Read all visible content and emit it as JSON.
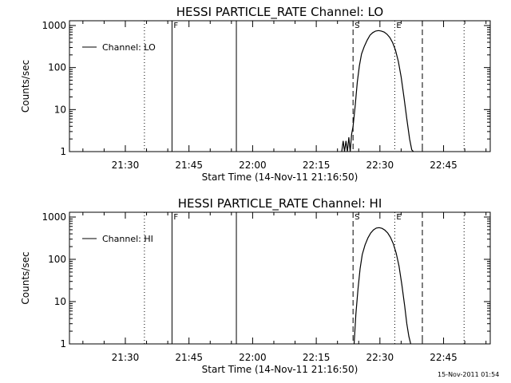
{
  "chart_data": [
    {
      "type": "line",
      "title": "HESSI PARTICLE_RATE Channel: LO",
      "xlabel": "Start Time (14-Nov-11 21:16:50)",
      "ylabel": "Counts/sec",
      "xlim": [
        "21:16:50",
        "22:56:00"
      ],
      "ylim": [
        1,
        1000
      ],
      "y_scale": "log",
      "x_ticks": [
        "21:30",
        "21:45",
        "22:00",
        "22:15",
        "22:30",
        "22:45"
      ],
      "y_ticks": [
        "1",
        "10",
        "100",
        "1000"
      ],
      "legend": {
        "position": "top-left",
        "entries": [
          "Channel: LO"
        ]
      },
      "markers": [
        {
          "time": "21:34:30",
          "style": "dotted",
          "label": ""
        },
        {
          "time": "21:41:00",
          "style": "solid",
          "label": "F"
        },
        {
          "time": "21:56:10",
          "style": "solid",
          "label": ""
        },
        {
          "time": "22:23:40",
          "style": "dashed",
          "label": "S"
        },
        {
          "time": "22:33:30",
          "style": "dotted",
          "label": "E"
        },
        {
          "time": "22:40:00",
          "style": "dashed",
          "label": ""
        },
        {
          "time": "22:49:50",
          "style": "dotted",
          "label": ""
        }
      ],
      "series": [
        {
          "name": "Channel: LO",
          "x": [
            "22:21:00",
            "22:21:20",
            "22:21:40",
            "22:22:00",
            "22:22:20",
            "22:22:40",
            "22:23:00",
            "22:23:20",
            "22:23:40",
            "22:24:10",
            "22:24:40",
            "22:25:10",
            "22:25:40",
            "22:26:20",
            "22:27:00",
            "22:27:40",
            "22:28:20",
            "22:29:00",
            "22:29:40",
            "22:30:20",
            "22:31:00",
            "22:31:40",
            "22:32:20",
            "22:33:00",
            "22:33:40",
            "22:34:20",
            "22:35:00",
            "22:35:40",
            "22:36:20",
            "22:37:00",
            "22:37:30",
            "22:37:55"
          ],
          "y": [
            1,
            1.8,
            1,
            1.8,
            1,
            2.2,
            1,
            2.6,
            4,
            12,
            45,
            110,
            210,
            320,
            450,
            590,
            680,
            740,
            760,
            740,
            700,
            620,
            520,
            390,
            260,
            140,
            60,
            20,
            6,
            2,
            1.1,
            1
          ]
        }
      ]
    },
    {
      "type": "line",
      "title": "HESSI PARTICLE_RATE Channel: HI",
      "xlabel": "Start Time (14-Nov-11 21:16:50)",
      "ylabel": "Counts/sec",
      "xlim": [
        "21:16:50",
        "22:56:00"
      ],
      "ylim": [
        1,
        1000
      ],
      "y_scale": "log",
      "x_ticks": [
        "21:30",
        "21:45",
        "22:00",
        "22:15",
        "22:30",
        "22:45"
      ],
      "y_ticks": [
        "1",
        "10",
        "100",
        "1000"
      ],
      "legend": {
        "position": "top-left",
        "entries": [
          "Channel: HI"
        ]
      },
      "markers": [
        {
          "time": "21:34:30",
          "style": "dotted",
          "label": ""
        },
        {
          "time": "21:41:00",
          "style": "solid",
          "label": "F"
        },
        {
          "time": "21:56:10",
          "style": "solid",
          "label": ""
        },
        {
          "time": "22:23:40",
          "style": "dashed",
          "label": "S"
        },
        {
          "time": "22:33:30",
          "style": "dotted",
          "label": "E"
        },
        {
          "time": "22:40:00",
          "style": "dashed",
          "label": ""
        },
        {
          "time": "22:49:50",
          "style": "dotted",
          "label": ""
        }
      ],
      "series": [
        {
          "name": "Channel: HI",
          "x": [
            "22:23:55",
            "22:24:20",
            "22:24:50",
            "22:25:20",
            "22:25:50",
            "22:26:30",
            "22:27:10",
            "22:27:50",
            "22:28:30",
            "22:29:10",
            "22:29:50",
            "22:30:30",
            "22:31:10",
            "22:31:50",
            "22:32:30",
            "22:33:10",
            "22:33:50",
            "22:34:30",
            "22:35:10",
            "22:35:50",
            "22:36:20",
            "22:36:50",
            "22:37:15"
          ],
          "y": [
            1,
            5,
            20,
            60,
            130,
            220,
            320,
            420,
            500,
            550,
            560,
            540,
            490,
            420,
            330,
            230,
            140,
            70,
            25,
            8,
            3,
            1.5,
            1
          ]
        }
      ]
    }
  ],
  "timestamp": "15-Nov-2011 01:54"
}
